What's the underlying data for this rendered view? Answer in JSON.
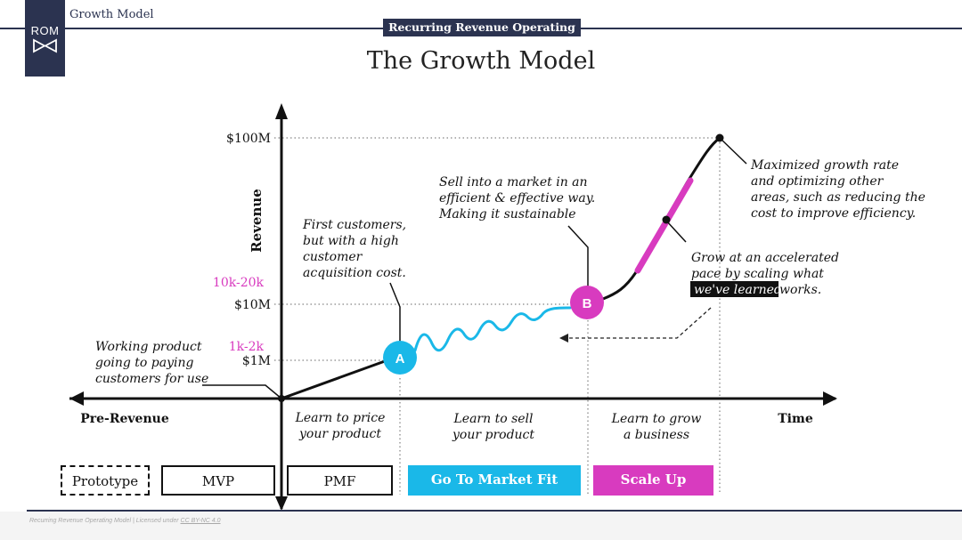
{
  "header": {
    "logo_text": "ROM",
    "section": "Growth Model",
    "banner": "Recurring Revenue Operating Model"
  },
  "title": "The Growth Model",
  "axes": {
    "y_label": "Revenue",
    "x_label": "Time",
    "pre_revenue": "Pre-Revenue",
    "ticks": [
      "$100M",
      "$10M",
      "$1M"
    ],
    "pink_ticks": [
      "10k-20k",
      "1k-2k"
    ]
  },
  "phases": [
    {
      "line1": "Learn to price",
      "line2": "your product"
    },
    {
      "line1": "Learn to sell",
      "line2": "your product"
    },
    {
      "line1": "Learn to grow",
      "line2": "a business"
    }
  ],
  "points": {
    "a": "A",
    "b": "B"
  },
  "annotations": {
    "working": [
      "Working product",
      "going to paying",
      "customers for use"
    ],
    "first": [
      "First customers,",
      "but with a high",
      "customer",
      "acquisition cost."
    ],
    "sell": [
      "Sell into a market in an",
      "efficient & effective way.",
      "Making it sustainable"
    ],
    "grow_line1": "Grow at an accelerated",
    "grow_line2": "pace by scaling what",
    "grow_highlight": "we've learned",
    "grow_tail": " works.",
    "max": [
      "Maximized growth rate",
      "and optimizing other",
      "areas, such as reducing the",
      "cost to improve efficiency."
    ]
  },
  "stages": [
    "Prototype",
    "MVP",
    "PMF",
    "Go To Market Fit",
    "Scale Up"
  ],
  "footer": {
    "text": "Recurring Revenue Operating Model | Licensed under ",
    "link": "CC BY-NC 4.0"
  },
  "colors": {
    "navy": "#2b3350",
    "cyan": "#1ab8e8",
    "magenta": "#d83bbf"
  }
}
